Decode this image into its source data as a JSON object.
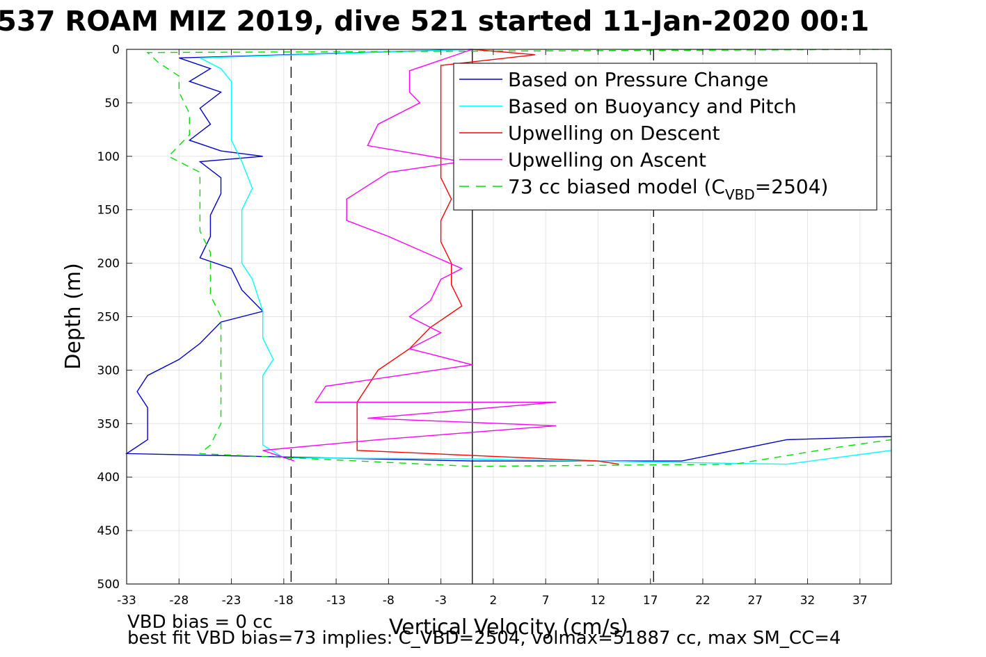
{
  "chart_data": {
    "type": "line",
    "title": "537 ROAM MIZ 2019, dive 521 started 11-Jan-2020 00:1",
    "xlabel": "Vertical Velocity (cm/s)",
    "ylabel": "Depth (m)",
    "xlim": [
      -33,
      40
    ],
    "ylim": [
      0,
      500
    ],
    "y_reversed": true,
    "grid": true,
    "xticks": [
      -33,
      -28,
      -23,
      -18,
      -13,
      -8,
      -3,
      2,
      7,
      12,
      17,
      22,
      27,
      32,
      37
    ],
    "yticks": [
      0,
      50,
      100,
      150,
      200,
      250,
      300,
      350,
      400,
      450,
      500
    ],
    "xtick_labels": [
      "-33",
      "-28",
      "-23",
      "-18",
      "-13",
      "-8",
      "-3",
      "2",
      "7",
      "12",
      "17",
      "22",
      "27",
      "32",
      "37"
    ],
    "ytick_labels": [
      "0",
      "50",
      "100",
      "150",
      "200",
      "250",
      "300",
      "350",
      "400",
      "450",
      "500"
    ],
    "vlines": [
      {
        "x": -17.3,
        "style": "dashed",
        "color": "#000000"
      },
      {
        "x": 0,
        "style": "solid",
        "color": "#000000"
      },
      {
        "x": 17.3,
        "style": "dashed",
        "color": "#000000"
      }
    ],
    "legend": {
      "placement": "top-right",
      "entries": [
        {
          "label": "Based on Pressure Change",
          "color": "#0000cc",
          "style": "solid"
        },
        {
          "label": "Based on Buoyancy and Pitch",
          "color": "#00ffff",
          "style": "solid"
        },
        {
          "label": "Upwelling on Descent",
          "color": "#ff0000",
          "style": "solid"
        },
        {
          "label": "Upwelling on Ascent",
          "color": "#ff00ff",
          "style": "solid"
        },
        {
          "label": "73 cc biased model (C",
          "sub": "VBD",
          "suffix": "=2504)",
          "color": "#00dd00",
          "style": "dashed"
        }
      ]
    },
    "series": [
      {
        "name": "Based on Pressure Change",
        "color": "#0000cc",
        "dash": "",
        "points": [
          [
            0,
            0
          ],
          [
            -28,
            8
          ],
          [
            -25,
            18
          ],
          [
            -27,
            30
          ],
          [
            -24,
            40
          ],
          [
            -26,
            55
          ],
          [
            -25,
            70
          ],
          [
            -27,
            85
          ],
          [
            -24,
            95
          ],
          [
            -20,
            100
          ],
          [
            -26,
            105
          ],
          [
            -24,
            120
          ],
          [
            -24,
            135
          ],
          [
            -25,
            155
          ],
          [
            -25,
            175
          ],
          [
            -26,
            195
          ],
          [
            -23,
            205
          ],
          [
            -22,
            225
          ],
          [
            -20,
            245
          ],
          [
            -24,
            255
          ],
          [
            -26,
            275
          ],
          [
            -28,
            290
          ],
          [
            -31,
            305
          ],
          [
            -32,
            320
          ],
          [
            -31,
            335
          ],
          [
            -31,
            345
          ],
          [
            -31,
            365
          ],
          [
            -33,
            378
          ],
          [
            0,
            385
          ],
          [
            20,
            385
          ],
          [
            30,
            365
          ],
          [
            40,
            362
          ]
        ]
      },
      {
        "name": "Based on Buoyancy and Pitch",
        "color": "#00ffff",
        "dash": "",
        "points": [
          [
            0,
            0
          ],
          [
            -26,
            8
          ],
          [
            -24,
            18
          ],
          [
            -23,
            30
          ],
          [
            -23,
            60
          ],
          [
            -23,
            85
          ],
          [
            -22,
            105
          ],
          [
            -21,
            130
          ],
          [
            -22,
            150
          ],
          [
            -22,
            175
          ],
          [
            -22,
            200
          ],
          [
            -21,
            215
          ],
          [
            -20,
            245
          ],
          [
            -20,
            270
          ],
          [
            -19,
            290
          ],
          [
            -20,
            305
          ],
          [
            -20,
            330
          ],
          [
            -20,
            350
          ],
          [
            -20,
            370
          ],
          [
            -18,
            382
          ],
          [
            0,
            383
          ],
          [
            30,
            388
          ],
          [
            40,
            375
          ]
        ]
      },
      {
        "name": "Upwelling on Descent",
        "color": "#ff0000",
        "dash": "",
        "points": [
          [
            0,
            0
          ],
          [
            6,
            5
          ],
          [
            -3,
            15
          ],
          [
            -3,
            40
          ],
          [
            -3,
            60
          ],
          [
            -3,
            80
          ],
          [
            -3,
            100
          ],
          [
            -3,
            120
          ],
          [
            -2,
            140
          ],
          [
            -3,
            160
          ],
          [
            -3,
            180
          ],
          [
            -2,
            200
          ],
          [
            -2,
            220
          ],
          [
            -1,
            240
          ],
          [
            -4,
            260
          ],
          [
            -6,
            280
          ],
          [
            -9,
            300
          ],
          [
            -10,
            315
          ],
          [
            -11,
            330
          ],
          [
            -11,
            345
          ],
          [
            -11,
            360
          ],
          [
            -11,
            375
          ],
          [
            12,
            385
          ],
          [
            14,
            388
          ]
        ]
      },
      {
        "name": "Upwelling on Ascent",
        "color": "#ff00ff",
        "dash": "",
        "points": [
          [
            0,
            0
          ],
          [
            -6,
            20
          ],
          [
            -6,
            40
          ],
          [
            -5,
            50
          ],
          [
            -9,
            70
          ],
          [
            -10,
            90
          ],
          [
            -1,
            105
          ],
          [
            -8,
            115
          ],
          [
            -12,
            140
          ],
          [
            -12,
            160
          ],
          [
            -8,
            175
          ],
          [
            -1,
            205
          ],
          [
            -3,
            215
          ],
          [
            -4,
            235
          ],
          [
            -6,
            250
          ],
          [
            -3,
            265
          ],
          [
            -6,
            280
          ],
          [
            0,
            295
          ],
          [
            -14,
            315
          ],
          [
            -15,
            330
          ],
          [
            8,
            330
          ],
          [
            -10,
            345
          ],
          [
            8,
            352
          ],
          [
            -9,
            365
          ],
          [
            -20,
            375
          ],
          [
            -17,
            385
          ]
        ]
      },
      {
        "name": "73 cc biased model (CVBD=2504)",
        "color": "#00dd00",
        "dash": "10 8",
        "points": [
          [
            40,
            0
          ],
          [
            -31,
            3
          ],
          [
            -30,
            12
          ],
          [
            -28,
            25
          ],
          [
            -28,
            40
          ],
          [
            -27,
            60
          ],
          [
            -27,
            80
          ],
          [
            -29,
            100
          ],
          [
            -26,
            115
          ],
          [
            -26,
            130
          ],
          [
            -26,
            150
          ],
          [
            -26,
            170
          ],
          [
            -25,
            190
          ],
          [
            -25,
            210
          ],
          [
            -25,
            230
          ],
          [
            -24,
            250
          ],
          [
            -24,
            270
          ],
          [
            -24,
            290
          ],
          [
            -24,
            310
          ],
          [
            -24,
            330
          ],
          [
            -24,
            350
          ],
          [
            -25,
            370
          ],
          [
            -26,
            378
          ],
          [
            0,
            390
          ],
          [
            25,
            388
          ],
          [
            35,
            372
          ],
          [
            40,
            365
          ]
        ]
      }
    ],
    "annotations": [
      "VBD bias = 0 cc",
      "best fit VBD bias=73 implies: C_VBD=2504, volmax=51887 cc, max SM_CC=4"
    ]
  }
}
